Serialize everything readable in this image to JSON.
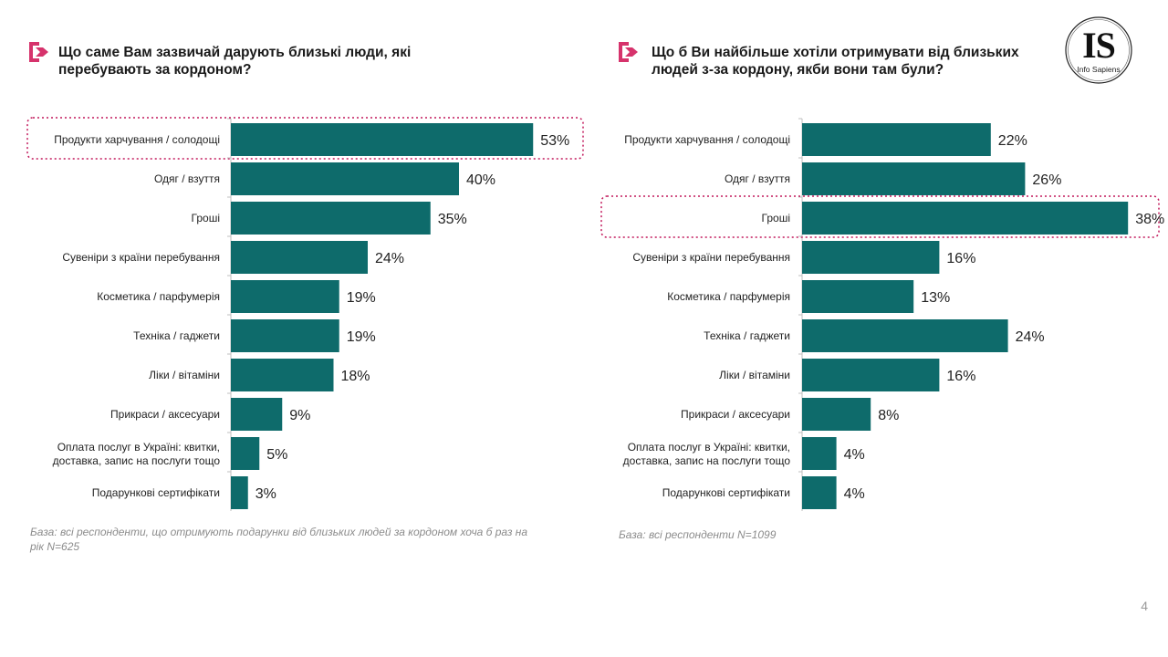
{
  "left": {
    "title": "Що саме Вам зазвичай дарують близькі люди, які перебувають за кордоном?",
    "footnote": "База: всі респонденти, що отримують подарунки від близьких людей за кордоном хоча б раз на рік N=625"
  },
  "right": {
    "title": "Що б Ви найбільше хотіли отримувати від близьких людей з-за кордону, якби вони там були?",
    "footnote": "База: всі респонденти N=1099"
  },
  "logo": {
    "text": "IS",
    "subtext": "Info Sapiens"
  },
  "page_number": "4",
  "colors": {
    "bar": "#0e6b6b",
    "accent": "#d6336c",
    "highlight": "#c2185b"
  },
  "chart_data": [
    {
      "type": "bar",
      "orientation": "horizontal",
      "categories": [
        "Продукти харчування / солодощі",
        "Одяг / взуття",
        "Гроші",
        "Сувеніри з країни перебування",
        "Косметика / парфумерія",
        "Техніка / гаджети",
        "Ліки / вітаміни",
        "Прикраси / аксесуари",
        "Оплата послуг в Україні: квитки, доставка, запис на послуги тощо",
        "Подарункові сертифікати"
      ],
      "values": [
        53,
        40,
        35,
        24,
        19,
        19,
        18,
        9,
        5,
        3
      ],
      "value_labels": [
        "53%",
        "40%",
        "35%",
        "24%",
        "19%",
        "19%",
        "18%",
        "9%",
        "5%",
        "3%"
      ],
      "highlighted_category": "Продукти харчування / солодощі",
      "unit": "%"
    },
    {
      "type": "bar",
      "orientation": "horizontal",
      "categories": [
        "Продукти харчування / солодощі",
        "Одяг / взуття",
        "Гроші",
        "Сувеніри з країни перебування",
        "Косметика / парфумерія",
        "Техніка / гаджети",
        "Ліки / вітаміни",
        "Прикраси / аксесуари",
        "Оплата послуг в Україні: квитки, доставка, запис на послуги тощо",
        "Подарункові сертифікати"
      ],
      "values": [
        22,
        26,
        38,
        16,
        13,
        24,
        16,
        8,
        4,
        4
      ],
      "value_labels": [
        "22%",
        "26%",
        "38%",
        "16%",
        "13%",
        "24%",
        "16%",
        "8%",
        "4%",
        "4%"
      ],
      "highlighted_category": "Гроші",
      "unit": "%"
    }
  ]
}
